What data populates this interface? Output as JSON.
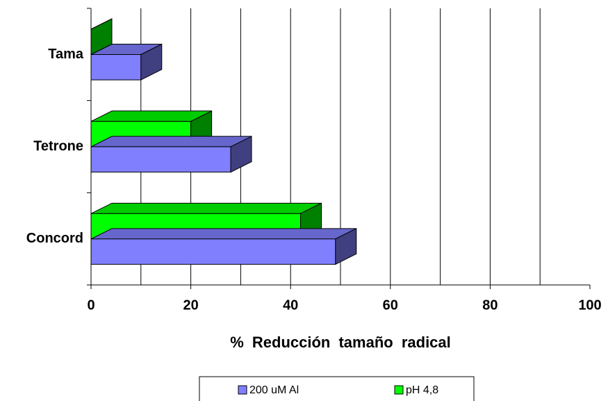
{
  "chart_data": {
    "type": "bar3d_horizontal",
    "categories": [
      "Tama",
      "Tetrone",
      "Concord"
    ],
    "series": [
      {
        "name": "200 uM Al",
        "color": "#8080ff",
        "values": [
          10,
          28,
          49
        ]
      },
      {
        "name": "pH 4,8",
        "color": "#00ff00",
        "values": [
          0,
          20,
          42
        ]
      }
    ],
    "x_label": "% Reducción tamaño radical",
    "xlim": [
      0,
      100
    ],
    "xticks": [
      0,
      20,
      40,
      60,
      80,
      100
    ],
    "xgrid": [
      10,
      20,
      30,
      40,
      50,
      60,
      70,
      80,
      90
    ],
    "legend": "bottom"
  }
}
